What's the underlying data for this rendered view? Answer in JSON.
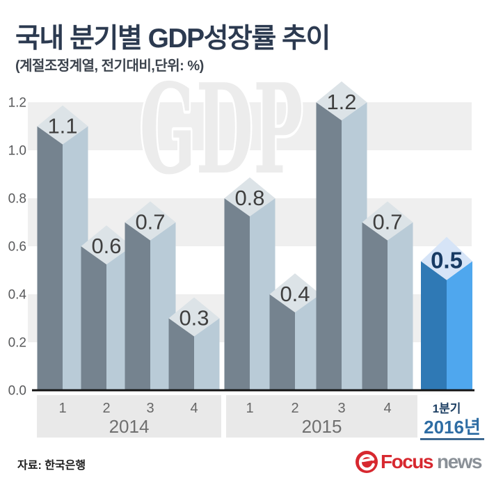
{
  "header": {
    "title": "국내 분기별 GDP성장률 추이",
    "subtitle": "(계절조정계열, 전기대비,단위: %)"
  },
  "watermark": "GDP",
  "chart_data": {
    "type": "bar",
    "title": "국내 분기별 GDP성장률 추이",
    "unit_note": "(계절조정계열, 전기대비,단위: %)",
    "ylabel": "",
    "xlabel": "",
    "ylim": [
      0.0,
      1.2
    ],
    "yticks": [
      "1.2",
      "1.0",
      "0.8",
      "0.6",
      "0.4",
      "0.2",
      "0.0"
    ],
    "grid": "alternating horizontal gray bands of 0.2 height",
    "legend": "none",
    "groups": [
      {
        "year": "2014",
        "quarters": [
          "1",
          "2",
          "3",
          "4"
        ],
        "values": [
          1.1,
          0.6,
          0.7,
          0.3
        ],
        "highlight": false
      },
      {
        "year": "2015",
        "quarters": [
          "1",
          "2",
          "3",
          "4"
        ],
        "values": [
          0.8,
          0.4,
          1.2,
          0.7
        ],
        "highlight": false
      },
      {
        "year": "2016년",
        "quarters": [
          "1분기"
        ],
        "values": [
          0.5
        ],
        "highlight": true
      }
    ],
    "colors": {
      "bar_dark": "#75838f",
      "bar_light": "#b9cbd7",
      "bar_top": "#dce3e7",
      "highlight_dark": "#2f79b5",
      "highlight_light": "#4fa7ee",
      "highlight_top": "#d6e4f7",
      "stripe": "#efefef",
      "axis_band": "#e9e9e9",
      "axis_line": "#141414",
      "value_label": "#3f3f3f",
      "highlight_value_label": "#173a63",
      "tick_label": "#58595b",
      "quarter_label": "#666666",
      "year_label": "#6f6f6f",
      "highlight_quarter_label": "#1d3f63",
      "highlight_year_label": "#2e6da4",
      "highlight_underline": "#1b4e7d"
    }
  },
  "footer": {
    "source": "자료: 한국은행",
    "logo": {
      "icon": "focusnews-swirl-icon",
      "brand_primary": "Focus",
      "brand_secondary": "news",
      "primary_color": "#d7282f",
      "secondary_color": "#8a9097"
    }
  }
}
